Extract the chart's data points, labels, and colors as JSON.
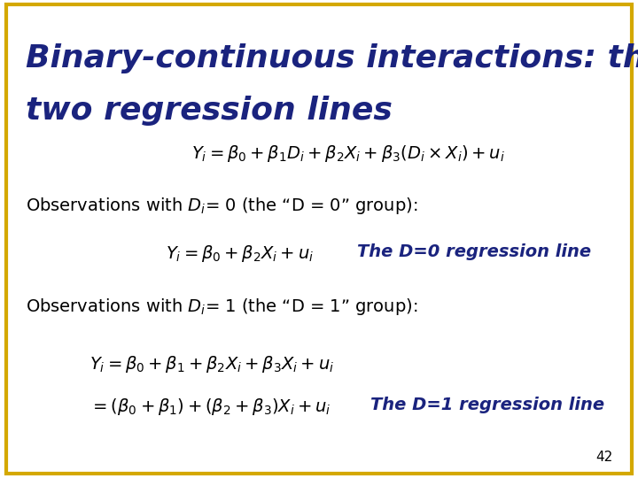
{
  "title_line1": "Binary-continuous interactions: the",
  "title_line2": "two regression lines",
  "title_color": "#1a237e",
  "title_fontsize": 26,
  "border_color": "#d4a800",
  "bg_color": "#ffffff",
  "page_number": "42",
  "eq_main": "$Y_i = \\beta_0 + \\beta_1 D_i + \\beta_2 X_i + \\beta_3(D_i\\times  X_i) + u_i$",
  "obs_d0": "Observations with $D_i$= 0 (the “D = 0” group):",
  "eq_d0": "$Y_i = \\beta_0 + \\beta_2 X_i + u_i$",
  "label_d0": "The D=0 regression line",
  "obs_d1": "Observations with $D_i$= 1 (the “D = 1” group):",
  "eq_d1a": "$Y_i = \\beta_0 + \\beta_1 + \\beta_2 X_i + \\beta_3 X_i + u_i$",
  "eq_d1b": "$= (\\beta_0+\\beta_1) + (\\beta_2+\\beta_3)X_i + u_i$",
  "label_d1": "The D=1 regression line",
  "text_color": "#000000",
  "label_color": "#1a237e",
  "eq_fontsize": 14,
  "obs_fontsize": 14,
  "label_fontsize": 14
}
